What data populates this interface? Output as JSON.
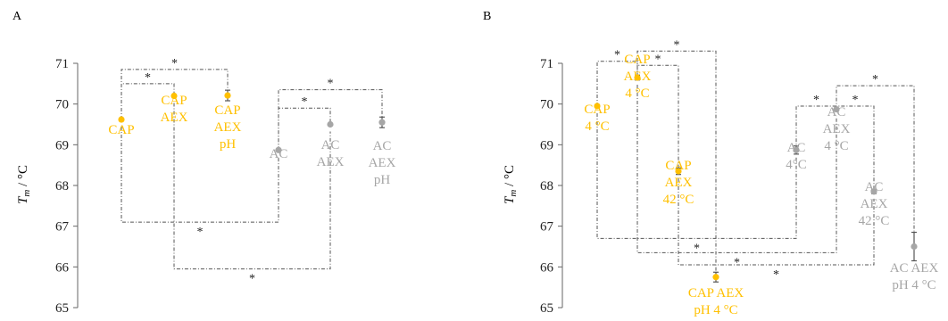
{
  "colors": {
    "cap": "#FFC000",
    "ac": "#A6A6A6"
  },
  "chart_data": [
    {
      "panel": "A",
      "type": "scatter",
      "ylabel": "T_m / °C",
      "ylabel_main": "T",
      "ylabel_sub": "m",
      "ylabel_unit": " / °C",
      "ylim": [
        65,
        71
      ],
      "yticks": [
        "65",
        "66",
        "67",
        "68",
        "69",
        "70",
        "71"
      ],
      "points": [
        {
          "id": "cap",
          "label": [
            "CAP"
          ],
          "y": 69.62,
          "err": 0,
          "group": "cap"
        },
        {
          "id": "cap-aex",
          "label": [
            "CAP",
            "AEX"
          ],
          "y": 70.2,
          "err": 0,
          "group": "cap"
        },
        {
          "id": "cap-aex-ph",
          "label": [
            "CAP",
            "AEX",
            "pH"
          ],
          "y": 70.21,
          "err": 0.13,
          "group": "cap"
        },
        {
          "id": "ac",
          "label": [
            "AC"
          ],
          "y": 68.87,
          "err": 0,
          "group": "ac"
        },
        {
          "id": "ac-aex",
          "label": [
            "AC",
            "AEX"
          ],
          "y": 69.5,
          "err": 0,
          "group": "ac"
        },
        {
          "id": "ac-aex-ph",
          "label": [
            "AC",
            "AEX",
            "pH"
          ],
          "y": 69.55,
          "err": 0.13,
          "group": "ac"
        }
      ],
      "significance": [
        {
          "from": 0,
          "to": 1,
          "y": 70.5,
          "side": "top",
          "label": "*"
        },
        {
          "from": 0,
          "to": 2,
          "y": 70.85,
          "side": "top",
          "label": "*"
        },
        {
          "from": 3,
          "to": 4,
          "y": 69.9,
          "side": "top",
          "label": "*"
        },
        {
          "from": 3,
          "to": 5,
          "y": 70.35,
          "side": "top",
          "label": "*"
        },
        {
          "from": 0,
          "to": 3,
          "y": 67.1,
          "side": "bottom",
          "label": "*"
        },
        {
          "from": 1,
          "to": 4,
          "y": 65.95,
          "side": "bottom",
          "label": "*"
        }
      ]
    },
    {
      "panel": "B",
      "type": "scatter",
      "ylabel": "T_m / °C",
      "ylabel_main": "T",
      "ylabel_sub": "m",
      "ylabel_unit": " / °C",
      "ylim": [
        65,
        71
      ],
      "yticks": [
        "65",
        "66",
        "67",
        "68",
        "69",
        "70",
        "71"
      ],
      "points": [
        {
          "id": "cap-4c",
          "label": [
            "CAP",
            "4 °C"
          ],
          "y": 69.95,
          "err": 0,
          "group": "cap"
        },
        {
          "id": "cap-aex-4c",
          "label": [
            "CAP",
            "AEX",
            "4 °C"
          ],
          "y": 70.65,
          "err": 0.06,
          "group": "cap"
        },
        {
          "id": "cap-aex-42c",
          "label": [
            "CAP",
            "AEX",
            "42 °C"
          ],
          "y": 68.35,
          "err": 0.08,
          "group": "cap"
        },
        {
          "id": "cap-aex-ph-4c",
          "label": [
            "CAP AEX",
            "pH 4 °C"
          ],
          "y": 65.75,
          "err": 0.12,
          "group": "cap"
        },
        {
          "id": "ac-4c",
          "label": [
            "AC",
            "4°C"
          ],
          "y": 68.87,
          "err": 0.1,
          "group": "ac"
        },
        {
          "id": "ac-aex-4c",
          "label": [
            "AC",
            "AEX",
            "4 °C"
          ],
          "y": 69.87,
          "err": 0,
          "group": "ac"
        },
        {
          "id": "ac-aex-42c",
          "label": [
            "AC",
            "AEX",
            "42 °C"
          ],
          "y": 67.85,
          "err": 0.05,
          "group": "ac"
        },
        {
          "id": "ac-aex-ph-4c",
          "label": [
            "AC AEX",
            "pH 4 °C"
          ],
          "y": 66.5,
          "err": 0.35,
          "group": "ac"
        }
      ],
      "significance": [
        {
          "from": 0,
          "to": 1,
          "y": 71.05,
          "side": "top",
          "label": "*"
        },
        {
          "from": 1,
          "to": 2,
          "y": 70.95,
          "side": "top",
          "label": "*"
        },
        {
          "from": 1,
          "to": 3,
          "y": 71.3,
          "side": "top",
          "label": "*"
        },
        {
          "from": 4,
          "to": 5,
          "y": 69.95,
          "side": "top",
          "label": "*"
        },
        {
          "from": 5,
          "to": 6,
          "y": 69.95,
          "side": "top",
          "label": "*"
        },
        {
          "from": 5,
          "to": 7,
          "y": 70.45,
          "side": "top",
          "label": "*"
        },
        {
          "from": 0,
          "to": 4,
          "y": 66.7,
          "side": "bottom",
          "label": "*"
        },
        {
          "from": 1,
          "to": 5,
          "y": 66.35,
          "side": "bottom",
          "label": "*"
        },
        {
          "from": 2,
          "to": 6,
          "y": 66.05,
          "side": "bottom",
          "label": "*"
        }
      ]
    }
  ]
}
